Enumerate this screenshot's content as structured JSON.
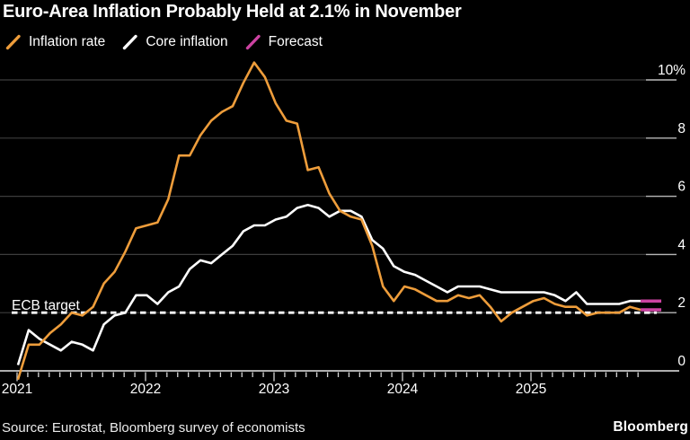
{
  "title": "Euro-Area Inflation Probably Held at 2.1% in November",
  "legend": {
    "items": [
      {
        "label": "Inflation rate",
        "color": "#EE9D3B"
      },
      {
        "label": "Core inflation",
        "color": "#FFFFFF"
      },
      {
        "label": "Forecast",
        "color": "#CC43A2"
      }
    ]
  },
  "annotations": {
    "ecb_target_label": "ECB target",
    "ecb_target_value": 2
  },
  "footer": {
    "source": "Source: Eurostat, Bloomberg survey of economists",
    "brand": "Bloomberg"
  },
  "chart_data": {
    "type": "line",
    "frequency": "monthly",
    "x_start": "2020-12",
    "x_end": "2025-11",
    "x_tick_labels": [
      "2021",
      "2022",
      "2023",
      "2024",
      "2025"
    ],
    "y_ticks": [
      0,
      2,
      4,
      6,
      8,
      10
    ],
    "y_tick_labels": [
      "0",
      "2",
      "4",
      "6",
      "8",
      "10%"
    ],
    "ylim": [
      -0.9,
      10.9
    ],
    "grid": true,
    "legend_position": "top-left",
    "reference_line": {
      "label": "ECB target",
      "value": 2,
      "style": "dashed",
      "color": "#FFFFFF"
    },
    "forecast": {
      "label": "Forecast",
      "color": "#CC43A2",
      "last_n_points": 1,
      "values": {
        "inflation_rate": 2.1,
        "core_inflation": 2.4
      }
    },
    "series": [
      {
        "name": "Inflation rate",
        "color": "#EE9D3B",
        "values": [
          -0.3,
          0.9,
          0.9,
          1.3,
          1.6,
          2.0,
          1.9,
          2.2,
          3.0,
          3.4,
          4.1,
          4.9,
          5.0,
          5.1,
          5.9,
          7.4,
          7.4,
          8.1,
          8.6,
          8.9,
          9.1,
          9.9,
          10.6,
          10.1,
          9.2,
          8.6,
          8.5,
          6.9,
          7.0,
          6.1,
          5.5,
          5.3,
          5.2,
          4.3,
          2.9,
          2.4,
          2.9,
          2.8,
          2.6,
          2.4,
          2.4,
          2.6,
          2.5,
          2.6,
          2.2,
          1.7,
          2.0,
          2.2,
          2.4,
          2.5,
          2.3,
          2.2,
          2.2,
          1.9,
          2.0,
          2.0,
          2.0,
          2.2,
          2.1,
          2.1
        ]
      },
      {
        "name": "Core inflation",
        "color": "#FFFFFF",
        "values": [
          0.2,
          1.4,
          1.1,
          0.9,
          0.7,
          1.0,
          0.9,
          0.7,
          1.6,
          1.9,
          2.0,
          2.6,
          2.6,
          2.3,
          2.7,
          2.9,
          3.5,
          3.8,
          3.7,
          4.0,
          4.3,
          4.8,
          5.0,
          5.0,
          5.2,
          5.3,
          5.6,
          5.7,
          5.6,
          5.3,
          5.5,
          5.5,
          5.3,
          4.5,
          4.2,
          3.6,
          3.4,
          3.3,
          3.1,
          2.9,
          2.7,
          2.9,
          2.9,
          2.9,
          2.8,
          2.7,
          2.7,
          2.7,
          2.7,
          2.7,
          2.6,
          2.4,
          2.7,
          2.3,
          2.3,
          2.3,
          2.3,
          2.4,
          2.4,
          2.4
        ]
      }
    ]
  }
}
